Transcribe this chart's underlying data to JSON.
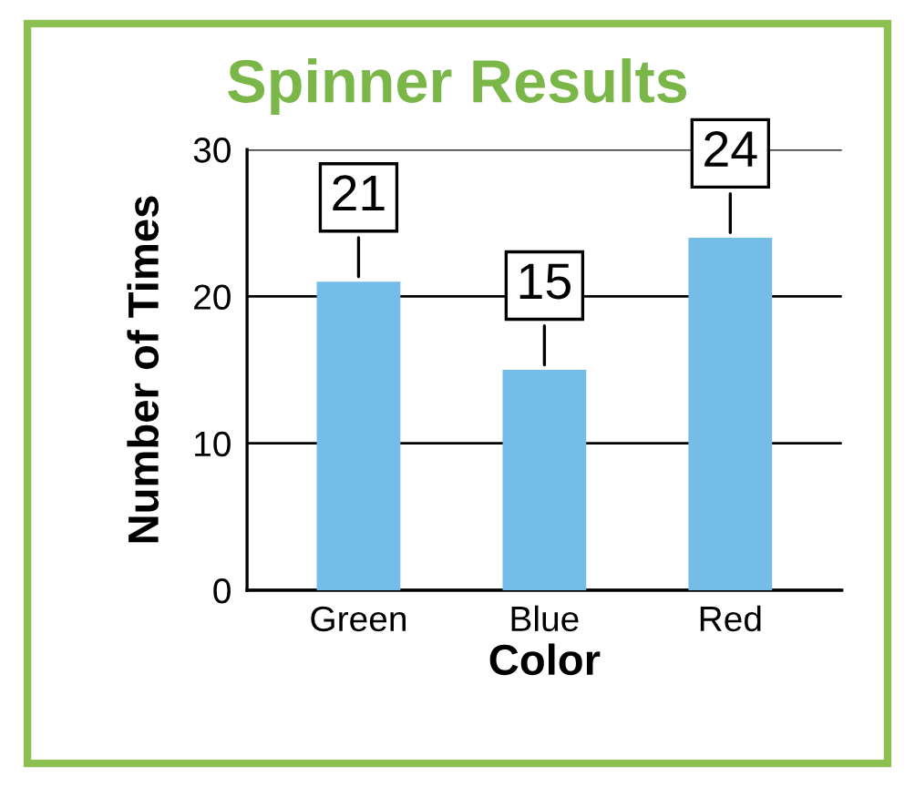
{
  "chart_data": {
    "type": "bar",
    "title": "Spinner Results",
    "xlabel": "Color",
    "ylabel": "Number of Times",
    "categories": [
      "Green",
      "Blue",
      "Red"
    ],
    "values": [
      21,
      15,
      24
    ],
    "color": "#74bde8",
    "ylim": [
      0,
      30
    ],
    "yticks": [
      0,
      10,
      20,
      30
    ],
    "grid": "y",
    "data_labels": true
  }
}
